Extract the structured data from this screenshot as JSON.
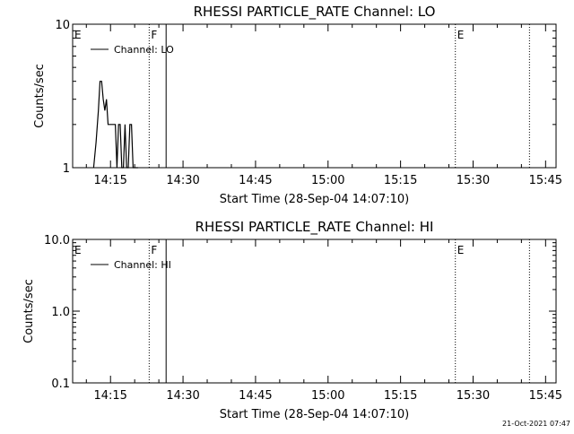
{
  "chart_data": [
    {
      "type": "line",
      "title": "RHESSI PARTICLE_RATE Channel: LO",
      "xlabel": "Start Time (28-Sep-04 14:07:10)",
      "ylabel": "Counts/sec",
      "yscale": "log",
      "ylim": [
        1,
        10
      ],
      "ytick_labels": [
        "1",
        "10"
      ],
      "xlim": [
        "14:07:10",
        "15:47:10"
      ],
      "xtick_labels": [
        "14:15",
        "14:30",
        "14:45",
        "15:00",
        "15:15",
        "15:30",
        "15:45"
      ],
      "grid": false,
      "legend": {
        "placement": "top-left",
        "entries": [
          "Channel: LO"
        ]
      },
      "series": [
        {
          "name": "Channel: LO",
          "x": [
            "14:11:30",
            "14:12:00",
            "14:12:30",
            "14:12:50",
            "14:13:10",
            "14:13:30",
            "14:13:50",
            "14:14:10",
            "14:14:30",
            "14:15:00",
            "14:15:30",
            "14:16:00",
            "14:16:20",
            "14:16:40",
            "14:17:00",
            "14:17:20",
            "14:17:40",
            "14:18:00",
            "14:18:20",
            "14:18:40",
            "14:19:00",
            "14:19:20",
            "14:19:40",
            "14:20:00",
            "14:20:20",
            "14:20:40"
          ],
          "y": [
            1,
            1.5,
            2.5,
            4,
            4,
            3,
            2.5,
            3,
            2,
            2,
            2,
            2,
            1,
            2,
            2,
            1,
            1,
            2,
            1,
            1,
            2,
            2,
            1,
            1,
            1,
            1
          ]
        }
      ],
      "markers": [
        {
          "label": "E",
          "time": "14:07:10",
          "style": "none"
        },
        {
          "label": "F",
          "time": "14:23:00",
          "style": "dotted"
        },
        {
          "label": "",
          "time": "14:26:30",
          "style": "solid"
        },
        {
          "label": "E",
          "time": "15:26:20",
          "style": "dotted"
        },
        {
          "label": "",
          "time": "15:41:40",
          "style": "dotted"
        }
      ]
    },
    {
      "type": "line",
      "title": "RHESSI PARTICLE_RATE Channel: HI",
      "xlabel": "Start Time (28-Sep-04 14:07:10)",
      "ylabel": "Counts/sec",
      "yscale": "log",
      "ylim": [
        0.1,
        10
      ],
      "ytick_labels": [
        "0.1",
        "1.0",
        "10.0"
      ],
      "xlim": [
        "14:07:10",
        "15:47:10"
      ],
      "xtick_labels": [
        "14:15",
        "14:30",
        "14:45",
        "15:00",
        "15:15",
        "15:30",
        "15:45"
      ],
      "grid": false,
      "legend": {
        "placement": "top-left",
        "entries": [
          "Channel: HI"
        ]
      },
      "series": [
        {
          "name": "Channel: HI",
          "x": [],
          "y": []
        }
      ],
      "markers": [
        {
          "label": "E",
          "time": "14:07:10",
          "style": "none"
        },
        {
          "label": "F",
          "time": "14:23:00",
          "style": "dotted"
        },
        {
          "label": "",
          "time": "14:26:30",
          "style": "solid"
        },
        {
          "label": "E",
          "time": "15:26:20",
          "style": "dotted"
        },
        {
          "label": "",
          "time": "15:41:40",
          "style": "dotted"
        }
      ]
    }
  ],
  "footer": {
    "timestamp": "21-Oct-2021 07:47"
  }
}
